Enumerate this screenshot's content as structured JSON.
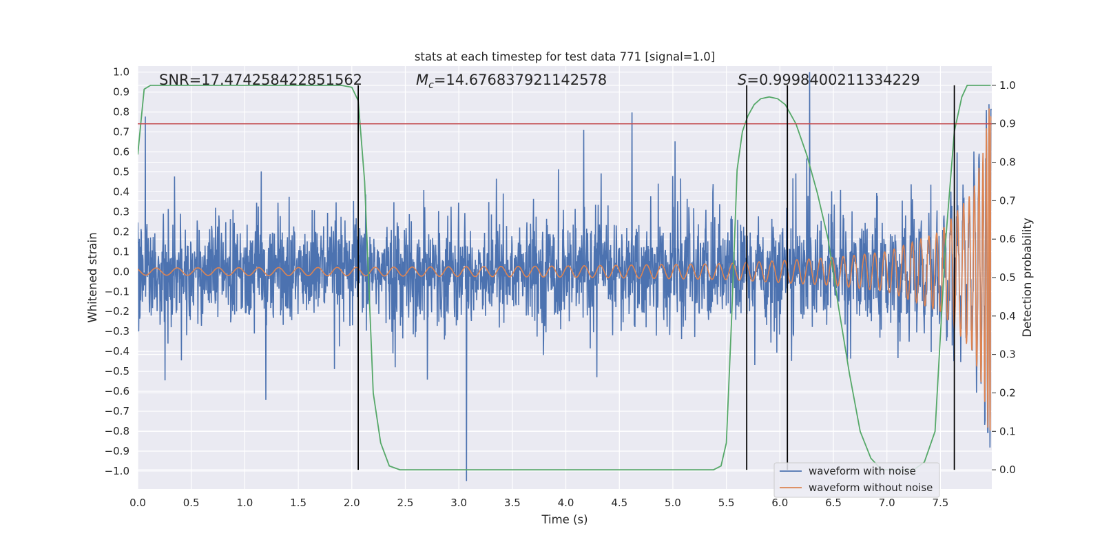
{
  "chart_data": {
    "type": "line",
    "title": "stats at each timestep for test data 771 [signal=1.0]",
    "xlabel": "Time (s)",
    "ylabel": "Whitened strain",
    "ylabel_right": "Detection probability",
    "xlim": [
      0.0,
      7.98
    ],
    "ylim": [
      -1.09,
      1.03
    ],
    "ylim_right": [
      -0.05,
      1.05
    ],
    "xticks": [
      0.0,
      0.5,
      1.0,
      1.5,
      2.0,
      2.5,
      3.0,
      3.5,
      4.0,
      4.5,
      5.0,
      5.5,
      6.0,
      6.5,
      7.0,
      7.5
    ],
    "xtick_labels": [
      "0.0",
      "0.5",
      "1.0",
      "1.5",
      "2.0",
      "2.5",
      "3.0",
      "3.5",
      "4.0",
      "4.5",
      "5.0",
      "5.5",
      "6.0",
      "6.5",
      "7.0",
      "7.5"
    ],
    "yticks": [
      1.0,
      0.9,
      0.8,
      0.7,
      0.6,
      0.5,
      0.4,
      0.3,
      0.2,
      0.1,
      0.0,
      -0.1,
      -0.2,
      -0.3,
      -0.4,
      -0.5,
      -0.6,
      -0.7,
      -0.8,
      -0.9,
      -1.0
    ],
    "ytick_labels": [
      "1.0",
      "0.9",
      "0.8",
      "0.7",
      "0.6",
      "0.5",
      "0.4",
      "0.3",
      "0.2",
      "0.1",
      "0.0",
      "−0.1",
      "−0.2",
      "−0.3",
      "−0.4",
      "−0.5",
      "−0.6",
      "−0.7",
      "−0.8",
      "−0.9",
      "−1.0"
    ],
    "yticks_right": [
      1.0,
      0.9,
      0.8,
      0.7,
      0.6,
      0.5,
      0.4,
      0.3,
      0.2,
      0.1,
      0.0
    ],
    "ytick_labels_right": [
      "1.0",
      "0.9",
      "0.8",
      "0.7",
      "0.6",
      "0.5",
      "0.4",
      "0.3",
      "0.2",
      "0.1",
      "0.0"
    ],
    "grid": true,
    "legend_position": "bottom-right",
    "annotations": {
      "snr": "SNR=17.474258422851562",
      "mc_symbol": "M",
      "mc_sub": "c",
      "mc_value": "=14.676837921142578",
      "s_symbol": "S",
      "s_value": "=0.9998400211334229"
    },
    "threshold_right": 0.9,
    "vlines_x": [
      2.06,
      5.69,
      6.07,
      7.63
    ],
    "vlines_range_right": [
      0.0,
      1.0
    ],
    "series": [
      {
        "name": "waveform with noise",
        "axis": "left",
        "color": "#4c72b0",
        "description": "dense noisy whitened strain, typical amplitude ±0.3, peaks to about ±0.7, merger spike to about ±1.0 near t=7.97"
      },
      {
        "name": "waveform without noise",
        "axis": "left",
        "color": "#dd8452",
        "description": "chirp oscillation with amplitude rising from about 0.02 to about 0.9 at t=7.97",
        "envelope_t": [
          0.0,
          2.0,
          4.0,
          5.5,
          6.5,
          7.0,
          7.5,
          7.8,
          7.9,
          7.97
        ],
        "envelope_a": [
          0.018,
          0.021,
          0.028,
          0.04,
          0.07,
          0.1,
          0.2,
          0.4,
          0.6,
          0.9
        ]
      },
      {
        "name": "detection probability",
        "axis": "right",
        "color": "#55a868",
        "x": [
          0.0,
          0.06,
          0.12,
          0.2,
          0.4,
          0.8,
          1.2,
          1.6,
          1.9,
          2.0,
          2.06,
          2.12,
          2.2,
          2.27,
          2.35,
          2.45,
          2.6,
          3.0,
          4.0,
          5.0,
          5.3,
          5.38,
          5.45,
          5.5,
          5.55,
          5.6,
          5.65,
          5.7,
          5.76,
          5.82,
          5.9,
          5.98,
          6.05,
          6.15,
          6.25,
          6.35,
          6.45,
          6.55,
          6.65,
          6.75,
          6.85,
          6.95,
          7.05,
          7.15,
          7.25,
          7.35,
          7.45,
          7.55,
          7.63,
          7.7,
          7.75,
          7.8,
          7.9,
          7.97
        ],
        "y": [
          0.82,
          0.99,
          1.0,
          1.0,
          1.0,
          1.0,
          1.0,
          1.0,
          1.0,
          0.995,
          0.96,
          0.75,
          0.2,
          0.07,
          0.01,
          0.0,
          0.0,
          0.0,
          0.0,
          0.0,
          0.0,
          0.0,
          0.01,
          0.07,
          0.4,
          0.78,
          0.88,
          0.92,
          0.95,
          0.965,
          0.97,
          0.965,
          0.95,
          0.9,
          0.82,
          0.72,
          0.6,
          0.42,
          0.25,
          0.1,
          0.03,
          0.0,
          0.0,
          0.0,
          0.0,
          0.02,
          0.1,
          0.6,
          0.88,
          0.97,
          1.0,
          1.0,
          1.0,
          1.0
        ]
      }
    ]
  }
}
